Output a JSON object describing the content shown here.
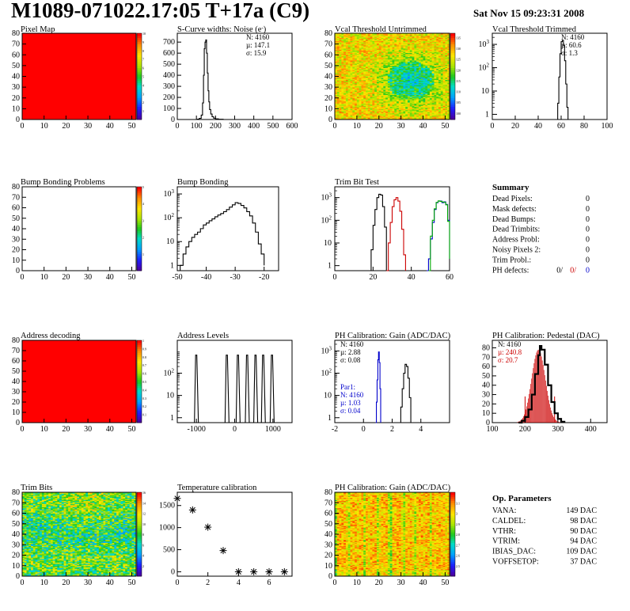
{
  "header": {
    "title": "M1089-071022.17:05 T+17a (C9)",
    "date": "Sat Nov 15 09:23:31 2008"
  },
  "summary": {
    "title": "Summary",
    "rows": [
      {
        "label": "Dead Pixels:",
        "value": "0"
      },
      {
        "label": "Mask defects:",
        "value": "0"
      },
      {
        "label": "Dead Bumps:",
        "value": "0"
      },
      {
        "label": "Dead Trimbits:",
        "value": "0"
      },
      {
        "label": "Address Probl:",
        "value": "0"
      },
      {
        "label": "Noisy Pixels 2:",
        "value": "0"
      },
      {
        "label": "Trim Probl.:",
        "value": "0"
      }
    ],
    "ph_defects": {
      "label": "PH defects:",
      "values": [
        "0/",
        "0/",
        "0"
      ],
      "colors": [
        "#000000",
        "#cc0000",
        "#0000cc"
      ]
    }
  },
  "op_params": {
    "title": "Op. Parameters",
    "rows": [
      {
        "label": "VANA:",
        "value": "149 DAC"
      },
      {
        "label": "CALDEL:",
        "value": "98 DAC"
      },
      {
        "label": "VTHR:",
        "value": "90 DAC"
      },
      {
        "label": "VTRIM:",
        "value": "94 DAC"
      },
      {
        "label": "IBIAS_DAC:",
        "value": "109 DAC"
      },
      {
        "label": "VOFFSETOP:",
        "value": "37 DAC"
      }
    ]
  },
  "chart_data": [
    {
      "id": "pixel-map",
      "type": "heatmap",
      "title": "Pixel Map",
      "fill": "uniform_max",
      "xlim": [
        0,
        52
      ],
      "ylim": [
        0,
        80
      ],
      "xticks": [
        0,
        10,
        20,
        30,
        40,
        50
      ],
      "yticks": [
        0,
        10,
        20,
        30,
        40,
        50,
        60,
        70,
        80
      ],
      "zlim": [
        0,
        10
      ],
      "zticks": [
        1,
        2,
        3,
        4,
        5,
        6,
        7,
        8,
        9,
        10
      ]
    },
    {
      "id": "scurve-noise",
      "type": "histogram",
      "title": "S-Curve widths: Noise (e",
      "title_sup": "-",
      "title_end": ")",
      "xlim": [
        0,
        600
      ],
      "ylog": false,
      "ylim": [
        0,
        780
      ],
      "xticks": [
        0,
        100,
        200,
        300,
        400,
        500,
        600
      ],
      "yticks": [
        0,
        100,
        200,
        300,
        400,
        500,
        600,
        700
      ],
      "stats": [
        "N: 4160",
        "µ: 147.1",
        "σ: 15.9"
      ],
      "series": [
        {
          "color": "#000000",
          "points": [
            [
              95,
              0
            ],
            [
              105,
              3
            ],
            [
              115,
              10
            ],
            [
              125,
              40
            ],
            [
              132,
              150
            ],
            [
              137,
              400
            ],
            [
              141,
              640
            ],
            [
              145,
              700
            ],
            [
              149,
              720
            ],
            [
              153,
              600
            ],
            [
              157,
              420
            ],
            [
              161,
              260
            ],
            [
              165,
              160
            ],
            [
              169,
              90
            ],
            [
              175,
              50
            ],
            [
              182,
              25
            ],
            [
              190,
              12
            ],
            [
              200,
              6
            ],
            [
              215,
              2
            ],
            [
              240,
              0
            ]
          ]
        }
      ]
    },
    {
      "id": "vcal-untrimmed",
      "type": "heatmap",
      "title": "Vcal Threshold Untrimmed",
      "fill": "noise_blue_center",
      "xlim": [
        0,
        52
      ],
      "ylim": [
        0,
        80
      ],
      "xticks": [
        0,
        10,
        20,
        30,
        40,
        50
      ],
      "yticks": [
        0,
        10,
        20,
        30,
        40,
        50,
        60,
        70,
        80
      ],
      "zlim": [
        97,
        137
      ],
      "zticks": [
        100,
        105,
        110,
        115,
        120,
        125,
        130,
        135
      ]
    },
    {
      "id": "vcal-trimmed",
      "type": "histogram",
      "title": "Vcal Threshold Trimmed",
      "xlim": [
        0,
        100
      ],
      "ylog": true,
      "ylim": [
        0.6,
        3000
      ],
      "xticks": [
        0,
        20,
        40,
        60,
        80,
        100
      ],
      "yticks": [
        1,
        10,
        100,
        1000
      ],
      "stats": [
        "N: 4160",
        "µ: 60.6",
        "σ:  1.3"
      ],
      "series": [
        {
          "color": "#000000",
          "points": [
            [
              56,
              0.6
            ],
            [
              57,
              3
            ],
            [
              58,
              40
            ],
            [
              59,
              400
            ],
            [
              60,
              1300
            ],
            [
              61,
              1500
            ],
            [
              62,
              900
            ],
            [
              63,
              200
            ],
            [
              64,
              20
            ],
            [
              65,
              2
            ],
            [
              66,
              0.6
            ]
          ]
        }
      ]
    },
    {
      "id": "bump-problems",
      "type": "heatmap",
      "title": "Bump Bonding Problems",
      "fill": "empty",
      "xlim": [
        0,
        52
      ],
      "ylim": [
        0,
        80
      ],
      "xticks": [
        0,
        10,
        20,
        30,
        40,
        50
      ],
      "yticks": [
        0,
        10,
        20,
        30,
        40,
        50,
        60,
        70,
        80
      ],
      "zlim": [
        0,
        5
      ],
      "zticks": [
        1,
        2,
        3,
        4,
        5
      ]
    },
    {
      "id": "bump-bonding",
      "type": "histogram",
      "title": "Bump Bonding",
      "xlim": [
        -50,
        -15
      ],
      "ylog": true,
      "ylim": [
        0.6,
        2000
      ],
      "xticks": [
        -50,
        -40,
        -30,
        -20
      ],
      "yticks": [
        1,
        10,
        100,
        1000
      ],
      "series": [
        {
          "color": "#000000",
          "points": [
            [
              -49,
              1
            ],
            [
              -48,
              3
            ],
            [
              -47,
              6
            ],
            [
              -46,
              10
            ],
            [
              -45,
              15
            ],
            [
              -44,
              20
            ],
            [
              -43,
              25
            ],
            [
              -42,
              35
            ],
            [
              -41,
              50
            ],
            [
              -40,
              60
            ],
            [
              -39,
              75
            ],
            [
              -38,
              90
            ],
            [
              -37,
              110
            ],
            [
              -36,
              130
            ],
            [
              -35,
              150
            ],
            [
              -34,
              180
            ],
            [
              -33,
              220
            ],
            [
              -32,
              280
            ],
            [
              -31,
              350
            ],
            [
              -30,
              430
            ],
            [
              -29,
              400
            ],
            [
              -28,
              330
            ],
            [
              -27,
              260
            ],
            [
              -26,
              180
            ],
            [
              -25,
              120
            ],
            [
              -24,
              60
            ],
            [
              -23,
              25
            ],
            [
              -22,
              8
            ],
            [
              -21,
              3
            ],
            [
              -20,
              1
            ]
          ]
        }
      ]
    },
    {
      "id": "trim-bit-test",
      "type": "histogram",
      "title": "Trim Bit Test",
      "xlim": [
        0,
        60
      ],
      "ylog": true,
      "ylim": [
        0.6,
        3000
      ],
      "xticks": [
        0,
        20,
        40,
        60
      ],
      "yticks": [
        1,
        10,
        100,
        1000
      ],
      "series": [
        {
          "color": "#000000",
          "points": [
            [
              18,
              0.6
            ],
            [
              19,
              5
            ],
            [
              20,
              60
            ],
            [
              21,
              300
            ],
            [
              22,
              1000
            ],
            [
              23,
              1400
            ],
            [
              24,
              1300
            ],
            [
              25,
              400
            ],
            [
              26,
              50
            ],
            [
              27,
              0.6
            ]
          ]
        },
        {
          "color": "#cc0000",
          "points": [
            [
              27,
              0.6
            ],
            [
              28,
              10
            ],
            [
              29,
              80
            ],
            [
              30,
              400
            ],
            [
              31,
              800
            ],
            [
              32,
              1000
            ],
            [
              33,
              700
            ],
            [
              34,
              250
            ],
            [
              35,
              40
            ],
            [
              36,
              3
            ],
            [
              37,
              0.6
            ]
          ]
        },
        {
          "color": "#0000cc",
          "points": [
            [
              48,
              0.6
            ],
            [
              49,
              2
            ],
            [
              50,
              15
            ],
            [
              51,
              80
            ],
            [
              52,
              300
            ],
            [
              53,
              600
            ],
            [
              54,
              700
            ],
            [
              55,
              700
            ],
            [
              56,
              600
            ],
            [
              57,
              650
            ],
            [
              58,
              500
            ],
            [
              59,
              100
            ],
            [
              60,
              2
            ]
          ]
        },
        {
          "color": "#00aa00",
          "points": [
            [
              49,
              0.6
            ],
            [
              50,
              20
            ],
            [
              51,
              100
            ],
            [
              52,
              320
            ],
            [
              53,
              620
            ],
            [
              54,
              720
            ],
            [
              55,
              680
            ],
            [
              56,
              640
            ],
            [
              57,
              620
            ],
            [
              58,
              480
            ],
            [
              59,
              90
            ],
            [
              60,
              2
            ]
          ]
        }
      ]
    },
    {
      "id": "address-decoding",
      "type": "heatmap",
      "title": "Address decoding",
      "fill": "uniform_max",
      "xlim": [
        0,
        52
      ],
      "ylim": [
        0,
        80
      ],
      "xticks": [
        0,
        10,
        20,
        30,
        40,
        50
      ],
      "yticks": [
        0,
        10,
        20,
        30,
        40,
        50,
        60,
        70,
        80
      ],
      "zlim": [
        0,
        1
      ],
      "zticks": [
        0.1,
        0.2,
        0.3,
        0.4,
        0.5,
        0.6,
        0.7,
        0.8,
        0.9,
        1
      ]
    },
    {
      "id": "address-levels",
      "type": "histogram",
      "title": "Address Levels",
      "xlim": [
        -1500,
        1500
      ],
      "ylog": true,
      "ylim": [
        0.6,
        3000
      ],
      "xticks": [
        -1000,
        0,
        1000
      ],
      "yticks": [
        1,
        10,
        100
      ],
      "peaks": [
        -1000,
        -200,
        90,
        330,
        550,
        750,
        980
      ],
      "peak_height": 650
    },
    {
      "id": "ph-gain",
      "type": "histogram",
      "title": "PH Calibration: Gain (ADC/DAC)",
      "xlim": [
        -2,
        6
      ],
      "ylog": true,
      "ylim": [
        0.6,
        3000
      ],
      "xticks": [
        -2,
        0,
        2,
        4
      ],
      "yticks": [
        1,
        10,
        100,
        1000
      ],
      "stats": [
        "N: 4160",
        "µ: 2.88",
        "σ: 0.08"
      ],
      "stats2_color": "#0000cc",
      "stats2": [
        "Par1:",
        "N: 4160",
        "µ: 1.03",
        "σ: 0.04"
      ],
      "series": [
        {
          "color": "#0000cc",
          "points": [
            [
              0.85,
              0.6
            ],
            [
              0.9,
              5
            ],
            [
              0.95,
              50
            ],
            [
              1.0,
              400
            ],
            [
              1.05,
              900
            ],
            [
              1.1,
              300
            ],
            [
              1.15,
              20
            ],
            [
              1.2,
              0.6
            ]
          ]
        },
        {
          "color": "#000000",
          "points": [
            [
              2.55,
              0.6
            ],
            [
              2.6,
              3
            ],
            [
              2.7,
              20
            ],
            [
              2.8,
              100
            ],
            [
              2.9,
              250
            ],
            [
              3.0,
              200
            ],
            [
              3.1,
              60
            ],
            [
              3.2,
              8
            ],
            [
              3.3,
              0.6
            ]
          ]
        }
      ]
    },
    {
      "id": "ph-pedestal",
      "type": "histogram",
      "title": "PH Calibration: Pedestal (DAC)",
      "xlim": [
        100,
        450
      ],
      "ylog": false,
      "ylim": [
        0,
        88
      ],
      "xticks": [
        100,
        200,
        300,
        400
      ],
      "yticks": [
        0,
        10,
        20,
        30,
        40,
        50,
        60,
        70,
        80
      ],
      "stats": [
        "N: 4160"
      ],
      "stats_red": [
        "µ: 240.8",
        "σ: 20.7"
      ],
      "series": [
        {
          "color": "#000000",
          "points": [
            [
              180,
              0
            ],
            [
              190,
              2
            ],
            [
              200,
              6
            ],
            [
              210,
              14
            ],
            [
              220,
              30
            ],
            [
              230,
              52
            ],
            [
              240,
              72
            ],
            [
              245,
              82
            ],
            [
              250,
              78
            ],
            [
              260,
              62
            ],
            [
              270,
              40
            ],
            [
              280,
              22
            ],
            [
              290,
              10
            ],
            [
              300,
              4
            ],
            [
              310,
              1
            ],
            [
              320,
              0
            ]
          ]
        }
      ],
      "fit_color": "#cc0000",
      "fit_mean": 240.8,
      "fit_sigma": 20.7,
      "fit_peak": 78,
      "cut_lines": [
        200,
        290
      ]
    },
    {
      "id": "trim-bits",
      "type": "heatmap",
      "title": "Trim Bits",
      "fill": "noise_trim",
      "xlim": [
        0,
        52
      ],
      "ylim": [
        0,
        80
      ],
      "xticks": [
        0,
        10,
        20,
        30,
        40,
        50
      ],
      "yticks": [
        0,
        10,
        20,
        30,
        40,
        50,
        60,
        70,
        80
      ],
      "zlim": [
        0,
        16
      ],
      "zticks": [
        2,
        4,
        6,
        8,
        10,
        12,
        14,
        16
      ]
    },
    {
      "id": "temp-calibration",
      "type": "scatter",
      "title": "Temperature calibration",
      "xlim": [
        0,
        7.5
      ],
      "ylim": [
        -100,
        1800
      ],
      "xticks": [
        0,
        2,
        4,
        6
      ],
      "yticks": [
        0,
        500,
        1000,
        1500
      ],
      "points": [
        [
          0,
          1660
        ],
        [
          1,
          1400
        ],
        [
          2,
          1010
        ],
        [
          3,
          480
        ],
        [
          4,
          0
        ],
        [
          5,
          0
        ],
        [
          6,
          0
        ],
        [
          7,
          0
        ]
      ]
    },
    {
      "id": "ph-gain-map",
      "type": "heatmap",
      "title": "PH Calibration: Gain (ADC/DAC)",
      "fill": "noise_gain",
      "xlim": [
        0,
        52
      ],
      "ylim": [
        0,
        80
      ],
      "xticks": [
        0,
        10,
        20,
        30,
        40,
        50
      ],
      "yticks": [
        0,
        10,
        20,
        30,
        40,
        50,
        60,
        70,
        80
      ],
      "zlim": [
        2.4,
        3.2
      ],
      "zticks": [
        2.5,
        2.6,
        2.7,
        2.8,
        2.9,
        3.0,
        3.1
      ]
    }
  ]
}
